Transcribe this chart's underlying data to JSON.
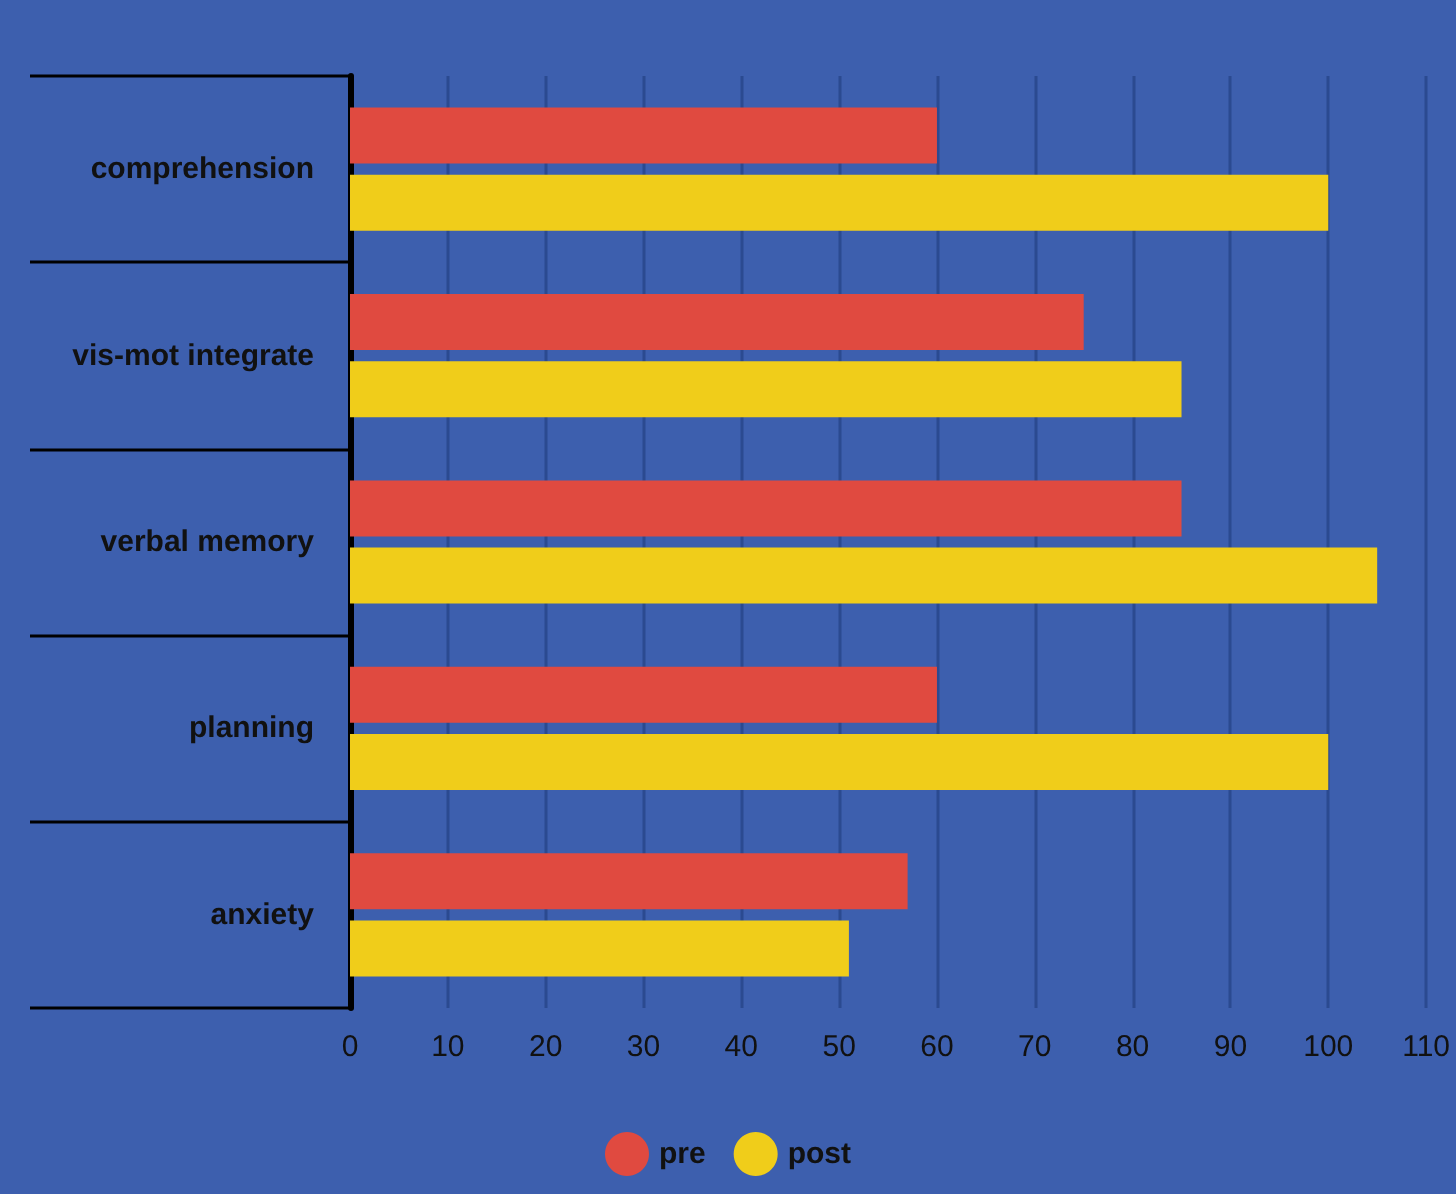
{
  "chart_data": {
    "type": "bar",
    "orientation": "horizontal",
    "categories": [
      "comprehension",
      "vis-mot integrate",
      "verbal memory",
      "planning",
      "anxiety"
    ],
    "series": [
      {
        "name": "pre",
        "color": "#e04a40",
        "values": [
          60,
          75,
          85,
          60,
          57
        ]
      },
      {
        "name": "post",
        "color": "#f0cd1a",
        "values": [
          100,
          85,
          105,
          100,
          51
        ]
      }
    ],
    "xlim": [
      0,
      110
    ],
    "xticks": [
      0,
      10,
      20,
      30,
      40,
      50,
      60,
      70,
      80,
      90,
      100,
      110
    ],
    "grid": "x",
    "legend": "bottom"
  }
}
